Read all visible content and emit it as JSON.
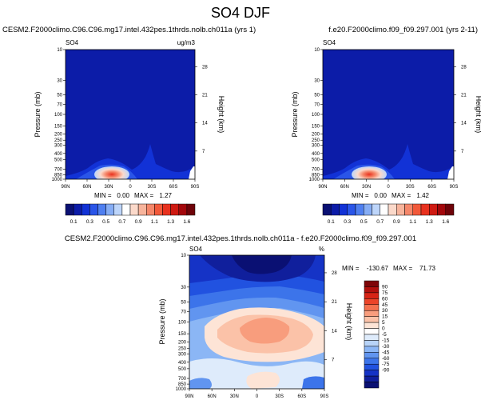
{
  "page_title": "SO4 DJF",
  "colors": {
    "abs_scale": [
      "#0a1073",
      "#0c1ca8",
      "#1232d6",
      "#2a55e8",
      "#4f7ff0",
      "#86adf5",
      "#bdd5fa",
      "#ffffff",
      "#fbd9ca",
      "#f7b49c",
      "#f5876a",
      "#f2593a",
      "#e8311e",
      "#cf1a12",
      "#a3070b",
      "#6e0309"
    ],
    "diff_scale": [
      "#0a1073",
      "#101f9c",
      "#1533c6",
      "#2152e0",
      "#3c74ea",
      "#6195f0",
      "#8bb6f5",
      "#b7d3f8",
      "#deebfb",
      "#ffffff",
      "#fde4d6",
      "#fbc2a8",
      "#f89d7d",
      "#f4714f",
      "#ec4429",
      "#d72416",
      "#b1100d",
      "#7e0508"
    ]
  },
  "chart_data": [
    {
      "type": "contour",
      "id": "panel1",
      "title": "CESM2.F2000climo.C96.C96.mg17.intel.432pes.1thrds.nolb.ch011a (yrs 1)",
      "field_label": "SO4",
      "units": "ug/m3",
      "ylabel": "Pressure (mb)",
      "ylabel_right": "Height (km)",
      "x_ticks": [
        "90N",
        "60N",
        "30N",
        "0",
        "30S",
        "60S",
        "90S"
      ],
      "y_ticks": [
        "10",
        "30",
        "50",
        "70",
        "100",
        "150",
        "200",
        "250",
        "300",
        "400",
        "500",
        "700",
        "850",
        "1000"
      ],
      "height_ticks": [
        "28",
        "21",
        "14",
        "7"
      ],
      "stats": {
        "min_label": "MIN =",
        "min": "0.00",
        "max_label": "MAX =",
        "max": "1.27"
      }
    },
    {
      "type": "contour",
      "id": "panel2",
      "title": "f.e20.F2000climo.f09_f09.297.001 (yrs 2-11)",
      "field_label": "SO4",
      "units": "ug/m3",
      "ylabel": "Pressure (mb)",
      "ylabel_right": "Height (km)",
      "x_ticks": [
        "90N",
        "60N",
        "30N",
        "0",
        "30S",
        "60S",
        "90S"
      ],
      "y_ticks": [
        "10",
        "30",
        "50",
        "70",
        "100",
        "150",
        "200",
        "250",
        "300",
        "400",
        "500",
        "700",
        "850",
        "1000"
      ],
      "height_ticks": [
        "28",
        "21",
        "14",
        "7"
      ],
      "stats": {
        "min_label": "MIN =",
        "min": "0.00",
        "max_label": "MAX =",
        "max": "1.42"
      }
    },
    {
      "type": "contour",
      "id": "panel3",
      "title": "CESM2.F2000climo.C96.C96.mg17.intel.432pes.1thrds.nolb.ch011a - f.e20.F2000climo.f09_f09.297.001",
      "field_label": "SO4",
      "units": "%",
      "ylabel": "Pressure (mb)",
      "ylabel_right": "Height (km)",
      "x_ticks": [
        "90N",
        "60N",
        "30N",
        "0",
        "30S",
        "60S",
        "90S"
      ],
      "y_ticks": [
        "10",
        "30",
        "50",
        "70",
        "100",
        "150",
        "200",
        "250",
        "300",
        "400",
        "500",
        "700",
        "850",
        "1000"
      ],
      "height_ticks": [
        "28",
        "21",
        "14",
        "7"
      ],
      "stats": {
        "min_label": "MIN =",
        "min": "-130.67",
        "max_label": "MAX =",
        "max": "71.73"
      }
    }
  ],
  "colorbar_abs": {
    "labels": [
      "0.1",
      "0.3",
      "0.5",
      "0.7",
      "0.9",
      "1.1",
      "1.3",
      "1.6"
    ]
  },
  "colorbar_diff": {
    "labels": [
      "90",
      "75",
      "60",
      "45",
      "30",
      "15",
      "5",
      "0",
      "-5",
      "-15",
      "-30",
      "-45",
      "-60",
      "-75",
      "-90"
    ]
  }
}
